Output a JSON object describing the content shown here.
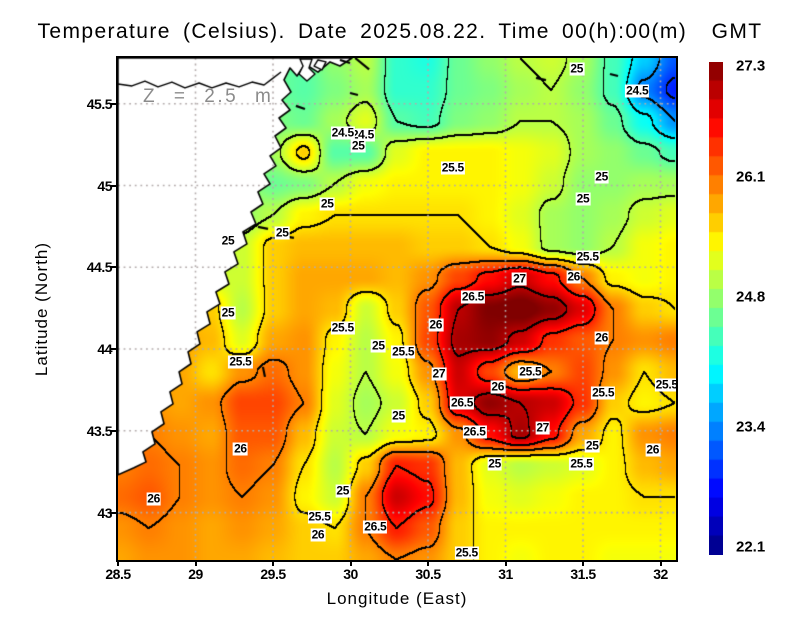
{
  "title": "Temperature (Celsius). Date 2025.08.22. Time 00(h):00(m)  GMT",
  "annotation": "Z = 2.5 m",
  "axes": {
    "x_label": "Longitude (East)",
    "y_label": "Latitude (North)",
    "x_ticks": [
      "28.5",
      "29",
      "29.5",
      "30",
      "30.5",
      "31",
      "31.5",
      "32"
    ],
    "y_ticks": [
      "45.5",
      "45",
      "44.5",
      "44",
      "43.5",
      "43"
    ]
  },
  "colorbar": {
    "min": 22.1,
    "max": 27.3,
    "steps": 26,
    "colormap": "jet",
    "tick_labels": [
      "27.3",
      "26.1",
      "24.8",
      "23.4",
      "22.1"
    ],
    "tick_values": [
      27.3,
      26.1,
      24.8,
      23.4,
      22.1
    ]
  },
  "chart_data": {
    "type": "heatmap",
    "title": "Temperature (Celsius). Date 2025.08.22. Time 00(h):00(m) GMT",
    "units": "Celsius",
    "xlabel": "Longitude (East)",
    "ylabel": "Latitude (North)",
    "xlim": [
      28.5,
      32.1
    ],
    "ylim": [
      42.71,
      45.78
    ],
    "x_tick_values": [
      28.5,
      29,
      29.5,
      30,
      30.5,
      31,
      31.5,
      32
    ],
    "y_tick_values": [
      45.5,
      45,
      44.5,
      44,
      43.5,
      43
    ],
    "vmin": 22.1,
    "vmax": 27.3,
    "contour_levels": [
      23,
      23.5,
      24,
      24.5,
      25,
      25.5,
      26,
      26.5,
      27
    ],
    "grid_lons": [
      28.5,
      28.7,
      28.9,
      29.1,
      29.3,
      29.5,
      29.7,
      29.9,
      30.1,
      30.3,
      30.5,
      30.7,
      30.9,
      31.1,
      31.3,
      31.5,
      31.7,
      31.9,
      32.1
    ],
    "grid_lats": [
      45.78,
      45.59,
      45.4,
      45.21,
      45.01,
      44.82,
      44.63,
      44.44,
      44.25,
      44.05,
      43.86,
      43.67,
      43.48,
      43.28,
      43.09,
      42.9,
      42.71
    ],
    "values": [
      [
        24.6,
        24.6,
        24.6,
        24.6,
        24.6,
        24.6,
        24.5,
        24.8,
        25.0,
        24.3,
        24.2,
        24.6,
        24.8,
        25.0,
        25.1,
        24.9,
        24.4,
        23.8,
        23.2
      ],
      [
        24.6,
        24.6,
        24.6,
        24.6,
        24.6,
        24.6,
        24.5,
        24.7,
        24.9,
        24.3,
        24.3,
        24.6,
        24.7,
        24.9,
        25.0,
        24.8,
        24.4,
        23.4,
        22.9
      ],
      [
        24.7,
        24.7,
        24.7,
        24.7,
        24.7,
        24.7,
        24.6,
        24.9,
        25.2,
        24.5,
        24.4,
        24.7,
        24.8,
        25.0,
        25.0,
        24.9,
        24.6,
        24.1,
        23.5
      ],
      [
        24.8,
        24.8,
        24.8,
        24.8,
        24.8,
        24.9,
        25.6,
        24.5,
        24.5,
        25.2,
        25.4,
        25.4,
        25.4,
        25.3,
        25.2,
        24.9,
        24.8,
        24.6,
        24.4
      ],
      [
        24.9,
        24.9,
        24.9,
        24.9,
        24.9,
        24.6,
        24.7,
        25.0,
        25.3,
        25.4,
        25.4,
        25.4,
        25.4,
        25.3,
        25.1,
        24.8,
        24.8,
        24.9,
        24.9
      ],
      [
        25.3,
        25.3,
        25.2,
        24.9,
        24.8,
        25.0,
        25.4,
        25.5,
        25.5,
        25.5,
        25.5,
        25.5,
        25.4,
        25.2,
        24.9,
        24.8,
        24.9,
        25.1,
        25.2
      ],
      [
        25.5,
        25.4,
        25.1,
        24.8,
        25.1,
        25.6,
        25.7,
        25.7,
        25.7,
        25.7,
        25.6,
        25.6,
        25.5,
        25.3,
        24.9,
        24.8,
        25.0,
        25.3,
        25.4
      ],
      [
        25.7,
        25.6,
        25.4,
        25.1,
        25.1,
        25.6,
        25.8,
        25.8,
        25.8,
        25.7,
        25.9,
        26.3,
        26.6,
        26.9,
        26.6,
        26.0,
        25.4,
        25.3,
        25.4
      ],
      [
        25.8,
        25.8,
        25.7,
        25.6,
        25.0,
        25.6,
        25.8,
        25.7,
        25.1,
        25.6,
        26.2,
        27.0,
        27.3,
        27.4,
        27.2,
        26.8,
        26.0,
        25.6,
        25.5
      ],
      [
        25.8,
        25.8,
        25.8,
        25.7,
        25.2,
        25.8,
        25.9,
        25.4,
        25.0,
        25.4,
        26.3,
        27.1,
        27.2,
        26.9,
        26.4,
        26.2,
        26.0,
        25.9,
        26.0
      ],
      [
        25.8,
        25.9,
        25.8,
        25.5,
        25.9,
        26.1,
        25.9,
        25.3,
        25.0,
        25.3,
        25.9,
        26.9,
        26.3,
        25.7,
        26.0,
        26.3,
        25.9,
        25.5,
        25.7
      ],
      [
        25.9,
        25.9,
        25.8,
        25.9,
        26.3,
        26.3,
        26.0,
        25.2,
        24.9,
        25.1,
        25.6,
        26.8,
        27.2,
        27.0,
        26.9,
        26.4,
        25.6,
        25.4,
        25.5
      ],
      [
        25.9,
        26.0,
        25.9,
        25.8,
        26.2,
        26.2,
        25.7,
        25.1,
        25.0,
        25.3,
        25.4,
        25.9,
        26.6,
        27.1,
        26.6,
        25.8,
        25.4,
        25.9,
        26.0
      ],
      [
        26.0,
        26.1,
        26.0,
        25.9,
        26.1,
        26.0,
        25.5,
        25.0,
        25.6,
        26.5,
        26.4,
        25.7,
        25.2,
        25.0,
        25.1,
        25.2,
        25.4,
        25.7,
        25.8
      ],
      [
        26.1,
        26.2,
        26.0,
        25.9,
        26.0,
        25.9,
        25.4,
        25.1,
        26.0,
        26.9,
        26.6,
        25.7,
        25.3,
        25.2,
        25.3,
        25.4,
        25.4,
        25.5,
        25.5
      ],
      [
        25.9,
        26.0,
        25.9,
        25.8,
        25.9,
        25.8,
        25.6,
        25.5,
        26.0,
        26.5,
        26.2,
        25.6,
        25.4,
        25.4,
        25.4,
        25.4,
        25.4,
        25.4,
        25.4
      ],
      [
        25.8,
        25.9,
        25.9,
        25.8,
        25.8,
        25.7,
        25.6,
        25.6,
        25.8,
        26.0,
        25.9,
        25.6,
        25.4,
        25.3,
        25.4,
        25.4,
        25.3,
        25.3,
        25.3
      ]
    ],
    "contour_labels": [
      {
        "lon": 31.46,
        "lat": 45.71,
        "text": "25"
      },
      {
        "lon": 31.85,
        "lat": 45.58,
        "text": "24.5"
      },
      {
        "lon": 30.08,
        "lat": 45.31,
        "text": "24.5"
      },
      {
        "lon": 29.95,
        "lat": 45.32,
        "text": "24.5"
      },
      {
        "lon": 30.05,
        "lat": 45.24,
        "text": "25"
      },
      {
        "lon": 30.66,
        "lat": 45.11,
        "text": "25.5"
      },
      {
        "lon": 31.62,
        "lat": 45.05,
        "text": "25"
      },
      {
        "lon": 31.5,
        "lat": 44.92,
        "text": "25"
      },
      {
        "lon": 29.85,
        "lat": 44.89,
        "text": "25"
      },
      {
        "lon": 29.56,
        "lat": 44.71,
        "text": "25"
      },
      {
        "lon": 29.21,
        "lat": 44.66,
        "text": "25"
      },
      {
        "lon": 29.21,
        "lat": 44.22,
        "text": "25"
      },
      {
        "lon": 29.95,
        "lat": 44.13,
        "text": "25.5"
      },
      {
        "lon": 29.29,
        "lat": 43.92,
        "text": "25.5"
      },
      {
        "lon": 31.53,
        "lat": 44.56,
        "text": "25.5"
      },
      {
        "lon": 31.44,
        "lat": 44.44,
        "text": "26"
      },
      {
        "lon": 31.09,
        "lat": 44.43,
        "text": "27"
      },
      {
        "lon": 30.79,
        "lat": 44.32,
        "text": "26.5"
      },
      {
        "lon": 30.55,
        "lat": 44.15,
        "text": "26"
      },
      {
        "lon": 31.62,
        "lat": 44.07,
        "text": "26"
      },
      {
        "lon": 30.18,
        "lat": 44.02,
        "text": "25"
      },
      {
        "lon": 30.34,
        "lat": 43.98,
        "text": "25.5"
      },
      {
        "lon": 30.57,
        "lat": 43.85,
        "text": "27"
      },
      {
        "lon": 31.16,
        "lat": 43.86,
        "text": "25.5"
      },
      {
        "lon": 30.95,
        "lat": 43.77,
        "text": "26"
      },
      {
        "lon": 31.63,
        "lat": 43.73,
        "text": "25.5"
      },
      {
        "lon": 32.04,
        "lat": 43.78,
        "text": "25.5"
      },
      {
        "lon": 30.72,
        "lat": 43.67,
        "text": "26.5"
      },
      {
        "lon": 30.31,
        "lat": 43.59,
        "text": "25"
      },
      {
        "lon": 31.24,
        "lat": 43.52,
        "text": "27"
      },
      {
        "lon": 30.8,
        "lat": 43.49,
        "text": "26.5"
      },
      {
        "lon": 31.56,
        "lat": 43.41,
        "text": "25"
      },
      {
        "lon": 31.95,
        "lat": 43.38,
        "text": "26"
      },
      {
        "lon": 31.49,
        "lat": 43.3,
        "text": "25.5"
      },
      {
        "lon": 30.93,
        "lat": 43.3,
        "text": "25"
      },
      {
        "lon": 29.95,
        "lat": 43.13,
        "text": "25"
      },
      {
        "lon": 29.29,
        "lat": 43.39,
        "text": "26"
      },
      {
        "lon": 28.73,
        "lat": 43.08,
        "text": "26"
      },
      {
        "lon": 29.8,
        "lat": 42.97,
        "text": "25.5"
      },
      {
        "lon": 29.79,
        "lat": 42.86,
        "text": "26"
      },
      {
        "lon": 30.16,
        "lat": 42.91,
        "text": "26.5"
      },
      {
        "lon": 30.75,
        "lat": 42.75,
        "text": "25.5"
      }
    ],
    "coastline": [
      [
        28.5,
        45.78
      ],
      [
        30.01,
        45.78
      ],
      [
        29.932,
        45.731
      ],
      [
        29.868,
        45.756
      ],
      [
        29.79,
        45.694
      ],
      [
        29.706,
        45.743
      ],
      [
        29.655,
        45.67
      ],
      [
        29.61,
        45.719
      ],
      [
        29.571,
        45.646
      ],
      [
        29.616,
        45.572
      ],
      [
        29.558,
        45.523
      ],
      [
        29.61,
        45.462
      ],
      [
        29.539,
        45.413
      ],
      [
        29.584,
        45.352
      ],
      [
        29.513,
        45.303
      ],
      [
        29.552,
        45.23
      ],
      [
        29.481,
        45.181
      ],
      [
        29.519,
        45.12
      ],
      [
        29.442,
        45.071
      ],
      [
        29.481,
        45.01
      ],
      [
        29.403,
        44.961
      ],
      [
        29.435,
        44.887
      ],
      [
        29.358,
        44.838
      ],
      [
        29.39,
        44.765
      ],
      [
        29.306,
        44.716
      ],
      [
        29.332,
        44.643
      ],
      [
        29.248,
        44.594
      ],
      [
        29.274,
        44.521
      ],
      [
        29.19,
        44.472
      ],
      [
        29.216,
        44.398
      ],
      [
        29.132,
        44.349
      ],
      [
        29.158,
        44.276
      ],
      [
        29.074,
        44.227
      ],
      [
        29.094,
        44.154
      ],
      [
        29.01,
        44.105
      ],
      [
        29.029,
        44.032
      ],
      [
        28.952,
        43.983
      ],
      [
        28.971,
        43.91
      ],
      [
        28.894,
        43.861
      ],
      [
        28.913,
        43.787
      ],
      [
        28.835,
        43.738
      ],
      [
        28.855,
        43.665
      ],
      [
        28.777,
        43.616
      ],
      [
        28.797,
        43.543
      ],
      [
        28.719,
        43.494
      ],
      [
        28.739,
        43.42
      ],
      [
        28.661,
        43.371
      ],
      [
        28.681,
        43.31
      ],
      [
        28.603,
        43.274
      ],
      [
        28.5,
        43.231
      ]
    ],
    "river": [
      [
        28.5,
        45.621
      ],
      [
        28.59,
        45.609
      ],
      [
        28.674,
        45.639
      ],
      [
        28.758,
        45.603
      ],
      [
        28.848,
        45.633
      ],
      [
        28.932,
        45.597
      ],
      [
        29.023,
        45.627
      ],
      [
        29.106,
        45.597
      ],
      [
        29.197,
        45.627
      ],
      [
        29.281,
        45.603
      ],
      [
        29.365,
        45.633
      ],
      [
        29.442,
        45.615
      ],
      [
        29.494,
        45.652
      ],
      [
        29.552,
        45.694
      ]
    ],
    "islands": [
      [
        [
          29.674,
          45.774
        ],
        [
          29.752,
          45.774
        ],
        [
          29.732,
          45.719
        ],
        [
          29.771,
          45.682
        ],
        [
          29.719,
          45.639
        ],
        [
          29.668,
          45.682
        ],
        [
          29.694,
          45.731
        ]
      ],
      [
        [
          29.79,
          45.768
        ],
        [
          29.842,
          45.756
        ],
        [
          29.816,
          45.707
        ],
        [
          29.765,
          45.731
        ]
      ]
    ],
    "small_contour_dashes": [
      [
        [
          29.932,
          45.768
        ],
        [
          29.997,
          45.749
        ]
      ],
      [
        [
          29.648,
          45.487
        ],
        [
          29.706,
          45.468
        ]
      ],
      [
        [
          31.197,
          45.658
        ],
        [
          31.261,
          45.645
        ]
      ],
      [
        [
          31.674,
          45.682
        ],
        [
          31.726,
          45.67
        ]
      ],
      [
        [
          29.403,
          44.747
        ],
        [
          29.468,
          44.735
        ]
      ],
      [
        [
          29.558,
          44.692
        ],
        [
          29.635,
          44.68
        ]
      ],
      [
        [
          29.997,
          45.566
        ],
        [
          30.048,
          45.554
        ]
      ],
      [
        [
          29.435,
          43.891
        ],
        [
          29.448,
          43.83
        ]
      ],
      [
        [
          30.03,
          45.78
        ],
        [
          30.12,
          45.71
        ]
      ]
    ]
  }
}
